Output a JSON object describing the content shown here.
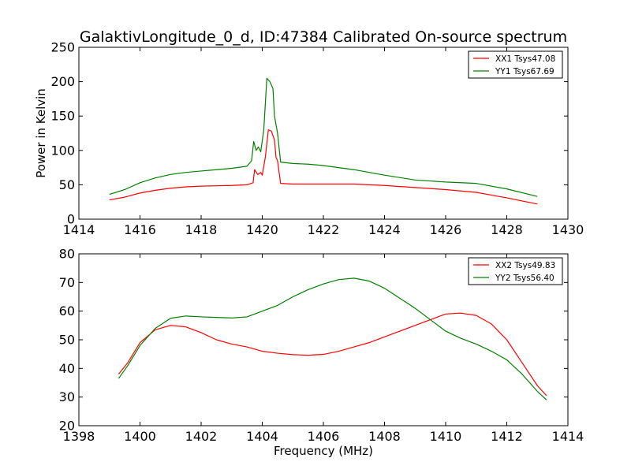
{
  "figure": {
    "title": "GalaktivLongitude_0_d, ID:47384 Calibrated On-source spectrum"
  },
  "chart_data": [
    {
      "type": "line",
      "title": "GalaktivLongitude_0_d, ID:47384 Calibrated On-source spectrum",
      "xlabel": "",
      "ylabel": "Power in Kelvin",
      "xlim": [
        1414,
        1430
      ],
      "ylim": [
        0,
        250
      ],
      "xticks": [
        1414,
        1416,
        1418,
        1420,
        1422,
        1424,
        1426,
        1428,
        1430
      ],
      "yticks": [
        0,
        50,
        100,
        150,
        200,
        250
      ],
      "grid": false,
      "legend_position": "top-right",
      "series": [
        {
          "name": "XX1 Tsys47.08",
          "color": "#ff0000",
          "points": [
            [
              1415.0,
              28
            ],
            [
              1415.5,
              32
            ],
            [
              1416.0,
              38
            ],
            [
              1416.5,
              42
            ],
            [
              1417.0,
              45
            ],
            [
              1417.5,
              47
            ],
            [
              1418.0,
              48
            ],
            [
              1418.5,
              48.5
            ],
            [
              1419.0,
              49
            ],
            [
              1419.5,
              50
            ],
            [
              1419.7,
              53
            ],
            [
              1419.75,
              72
            ],
            [
              1419.85,
              65
            ],
            [
              1419.95,
              68
            ],
            [
              1420.0,
              64
            ],
            [
              1420.1,
              90
            ],
            [
              1420.2,
              130
            ],
            [
              1420.3,
              128
            ],
            [
              1420.4,
              115
            ],
            [
              1420.45,
              90
            ],
            [
              1420.5,
              85
            ],
            [
              1420.6,
              52
            ],
            [
              1421.0,
              51
            ],
            [
              1422.0,
              51
            ],
            [
              1423.0,
              51
            ],
            [
              1424.0,
              49
            ],
            [
              1425.0,
              46
            ],
            [
              1426.0,
              43
            ],
            [
              1427.0,
              39
            ],
            [
              1428.0,
              31
            ],
            [
              1429.0,
              22
            ]
          ]
        },
        {
          "name": "YY1 Tsys67.69",
          "color": "#008000",
          "points": [
            [
              1415.0,
              36
            ],
            [
              1415.5,
              43
            ],
            [
              1416.0,
              53
            ],
            [
              1416.5,
              60
            ],
            [
              1417.0,
              65
            ],
            [
              1417.5,
              68
            ],
            [
              1418.0,
              70
            ],
            [
              1418.5,
              72
            ],
            [
              1419.0,
              74
            ],
            [
              1419.5,
              77
            ],
            [
              1419.65,
              85
            ],
            [
              1419.72,
              113
            ],
            [
              1419.8,
              100
            ],
            [
              1419.87,
              105
            ],
            [
              1419.95,
              98
            ],
            [
              1420.05,
              130
            ],
            [
              1420.15,
              205
            ],
            [
              1420.25,
              200
            ],
            [
              1420.35,
              190
            ],
            [
              1420.4,
              150
            ],
            [
              1420.5,
              125
            ],
            [
              1420.6,
              83
            ],
            [
              1421.0,
              81
            ],
            [
              1421.5,
              80
            ],
            [
              1422.0,
              78
            ],
            [
              1423.0,
              72
            ],
            [
              1424.0,
              64
            ],
            [
              1425.0,
              57
            ],
            [
              1426.0,
              54
            ],
            [
              1427.0,
              52
            ],
            [
              1428.0,
              44
            ],
            [
              1429.0,
              33
            ]
          ]
        }
      ]
    },
    {
      "type": "line",
      "xlabel": "Frequency (MHz)",
      "ylabel": "",
      "xlim": [
        1398,
        1414
      ],
      "ylim": [
        20,
        80
      ],
      "xticks": [
        1398,
        1400,
        1402,
        1404,
        1406,
        1408,
        1410,
        1412,
        1414
      ],
      "yticks": [
        20,
        30,
        40,
        50,
        60,
        70,
        80
      ],
      "grid": false,
      "legend_position": "top-right",
      "series": [
        {
          "name": "XX2 Tsys49.83",
          "color": "#ff0000",
          "points": [
            [
              1399.3,
              38
            ],
            [
              1399.6,
              42
            ],
            [
              1400.0,
              49
            ],
            [
              1400.5,
              53.5
            ],
            [
              1401.0,
              55
            ],
            [
              1401.5,
              54.5
            ],
            [
              1402.0,
              52.5
            ],
            [
              1402.5,
              50
            ],
            [
              1403.0,
              48.5
            ],
            [
              1403.5,
              47.5
            ],
            [
              1404.0,
              46
            ],
            [
              1404.5,
              45.3
            ],
            [
              1405.0,
              44.8
            ],
            [
              1405.5,
              44.6
            ],
            [
              1406.0,
              44.9
            ],
            [
              1406.5,
              46
            ],
            [
              1407.0,
              47.5
            ],
            [
              1407.5,
              49
            ],
            [
              1408.0,
              51
            ],
            [
              1408.5,
              53
            ],
            [
              1409.0,
              55
            ],
            [
              1409.5,
              57
            ],
            [
              1410.0,
              59
            ],
            [
              1410.5,
              59.3
            ],
            [
              1411.0,
              58.5
            ],
            [
              1411.5,
              55.5
            ],
            [
              1412.0,
              50
            ],
            [
              1412.5,
              42
            ],
            [
              1413.0,
              34
            ],
            [
              1413.3,
              30.5
            ]
          ]
        },
        {
          "name": "YY2 Tsys56.40",
          "color": "#008000",
          "points": [
            [
              1399.3,
              36.5
            ],
            [
              1399.6,
              41
            ],
            [
              1400.0,
              48
            ],
            [
              1400.5,
              54
            ],
            [
              1401.0,
              57.5
            ],
            [
              1401.5,
              58.3
            ],
            [
              1402.0,
              58
            ],
            [
              1402.5,
              57.8
            ],
            [
              1403.0,
              57.6
            ],
            [
              1403.5,
              58
            ],
            [
              1404.0,
              60
            ],
            [
              1404.5,
              62
            ],
            [
              1405.0,
              65
            ],
            [
              1405.5,
              67.5
            ],
            [
              1406.0,
              69.5
            ],
            [
              1406.5,
              71
            ],
            [
              1407.0,
              71.5
            ],
            [
              1407.5,
              70.5
            ],
            [
              1408.0,
              68
            ],
            [
              1408.5,
              64.5
            ],
            [
              1409.0,
              61
            ],
            [
              1409.5,
              57
            ],
            [
              1410.0,
              53
            ],
            [
              1410.5,
              50.5
            ],
            [
              1411.0,
              48.5
            ],
            [
              1411.5,
              46
            ],
            [
              1412.0,
              43
            ],
            [
              1412.5,
              38
            ],
            [
              1413.0,
              32
            ],
            [
              1413.3,
              29
            ]
          ]
        }
      ]
    }
  ]
}
